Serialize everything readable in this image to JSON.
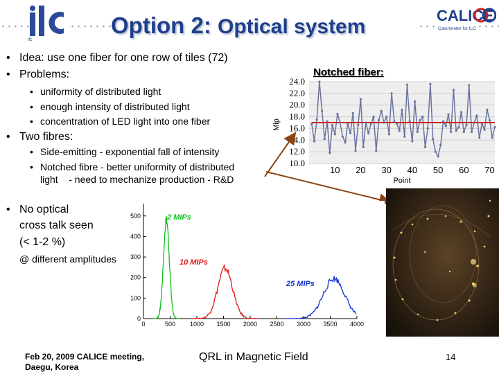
{
  "header": {
    "logo_left": "ilc",
    "title_main": "Option 2:",
    "title_sub": "Optical system",
    "logo_right_text": "CALICE",
    "logo_right_caption": "Calorimeter for ILC"
  },
  "bullets_top": [
    "Idea: use one fiber for one row of tiles (72)",
    "Problems:"
  ],
  "problems": [
    "uniformity of distributed light",
    "enough intensity of distributed light",
    "concentration of LED light into one fiber"
  ],
  "two_fibres_label": "Two fibres:",
  "fibres": [
    "Side-emitting - exponential fall of intensity",
    "Notched fibre - better uniformity of distributed",
    "light    - need to mechanize production - R&D"
  ],
  "crosstalk": {
    "line1": "No optical",
    "line2": "cross talk seen",
    "line3": "(< 1-2 %)",
    "note": "@ different amplitudes"
  },
  "notched_label": "Notched fiber:",
  "footer": {
    "left_line1": "Feb 20, 2009 CALICE meeting,",
    "left_line2": "Daegu, Korea",
    "center": "QRL in Magnetic Field",
    "page": "14"
  },
  "colors": {
    "title": "#1f3f8a",
    "green_peak": "#10c020",
    "red_peak": "#e01515",
    "blue_peak": "#1530d0",
    "notched_series": "#6a73a0",
    "mean_line": "#d02020",
    "arrow": "#8b4513"
  },
  "chart_data": [
    {
      "type": "line",
      "title": "",
      "xlabel": "Point",
      "ylabel": "Mip",
      "ylim": [
        10.0,
        24.0
      ],
      "xlim": [
        0,
        72
      ],
      "yticks": [
        "24.0",
        "22.0",
        "20.0",
        "18.0",
        "16.0",
        "14.0",
        "12.0",
        "10.0"
      ],
      "xticks": [
        "10",
        "20",
        "30",
        "40",
        "50",
        "60",
        "70"
      ],
      "grid": true,
      "x": [
        1,
        2,
        3,
        4,
        5,
        6,
        7,
        8,
        9,
        10,
        11,
        12,
        13,
        14,
        15,
        16,
        17,
        18,
        19,
        20,
        21,
        22,
        23,
        24,
        25,
        26,
        27,
        28,
        29,
        30,
        31,
        32,
        33,
        34,
        35,
        36,
        37,
        38,
        39,
        40,
        41,
        42,
        43,
        44,
        45,
        46,
        47,
        48,
        49,
        50,
        51,
        52,
        53,
        54,
        55,
        56,
        57,
        58,
        59,
        60,
        61,
        62,
        63,
        64,
        65,
        66,
        67,
        68,
        69,
        70,
        71,
        72
      ],
      "series": [
        {
          "values": [
            16.8,
            13.8,
            17.5,
            24.0,
            19.0,
            14.2,
            17.2,
            11.8,
            16.6,
            15.0,
            18.5,
            17.0,
            14.6,
            13.6,
            16.8,
            15.2,
            18.6,
            12.2,
            16.6,
            21.0,
            12.8,
            17.0,
            15.2,
            16.8,
            18.0,
            12.2,
            17.4,
            19.0,
            17.0,
            18.0,
            15.0,
            22.0,
            17.2,
            16.8,
            15.6,
            19.2,
            14.6,
            23.5,
            17.2,
            13.8,
            20.6,
            15.4,
            17.4,
            18.0,
            12.8,
            16.0,
            23.6,
            14.2,
            12.0,
            11.2,
            13.2,
            17.2,
            16.4,
            18.4,
            15.4,
            22.6,
            15.6,
            16.2,
            18.8,
            15.4,
            16.6,
            23.4,
            15.4,
            17.0,
            18.2,
            14.4,
            16.8,
            15.8,
            19.2,
            17.4,
            14.4,
            16.2
          ]
        },
        {
          "values": [
            17.0,
            17.0,
            17.0,
            17.0,
            17.0,
            17.0,
            17.0,
            17.0,
            17.0,
            17.0,
            17.0,
            17.0,
            17.0,
            17.0,
            17.0,
            17.0,
            17.0,
            17.0,
            17.0,
            17.0,
            17.0,
            17.0,
            17.0,
            17.0,
            17.0,
            17.0,
            17.0,
            17.0,
            17.0,
            17.0,
            17.0,
            17.0,
            17.0,
            17.0,
            17.0,
            17.0,
            17.0,
            17.0,
            17.0,
            17.0,
            17.0,
            17.0,
            17.0,
            17.0,
            17.0,
            17.0,
            17.0,
            17.0,
            17.0,
            17.0,
            17.0,
            17.0,
            17.0,
            17.0,
            17.0,
            17.0,
            17.0,
            17.0,
            17.0,
            17.0,
            17.0,
            17.0,
            17.0,
            17.0,
            17.0,
            17.0,
            17.0,
            17.0,
            17.0,
            17.0,
            17.0,
            17.0
          ]
        }
      ]
    },
    {
      "type": "area",
      "title": "",
      "xlabel": "",
      "ylabel": "",
      "xlim": [
        0,
        4000
      ],
      "ylim": [
        0,
        560
      ],
      "xticks": [
        "0",
        "500",
        "1000",
        "1500",
        "2000",
        "2500",
        "3000",
        "3500",
        "4000"
      ],
      "yticks": [
        "500",
        "400",
        "300",
        "200",
        "100",
        "0"
      ],
      "annotations": [
        "2 MIPs",
        "10 MIPs",
        "25 MIPs"
      ],
      "peaks": [
        {
          "label": "2 MIPs",
          "mean": 430,
          "sigma": 55,
          "height": 480,
          "color": "#10c020"
        },
        {
          "label": "10 MIPs",
          "mean": 1530,
          "sigma": 140,
          "height": 245,
          "color": "#e01515"
        },
        {
          "label": "25 MIPs",
          "mean": 3570,
          "sigma": 200,
          "height": 195,
          "color": "#1530d0"
        }
      ]
    }
  ]
}
